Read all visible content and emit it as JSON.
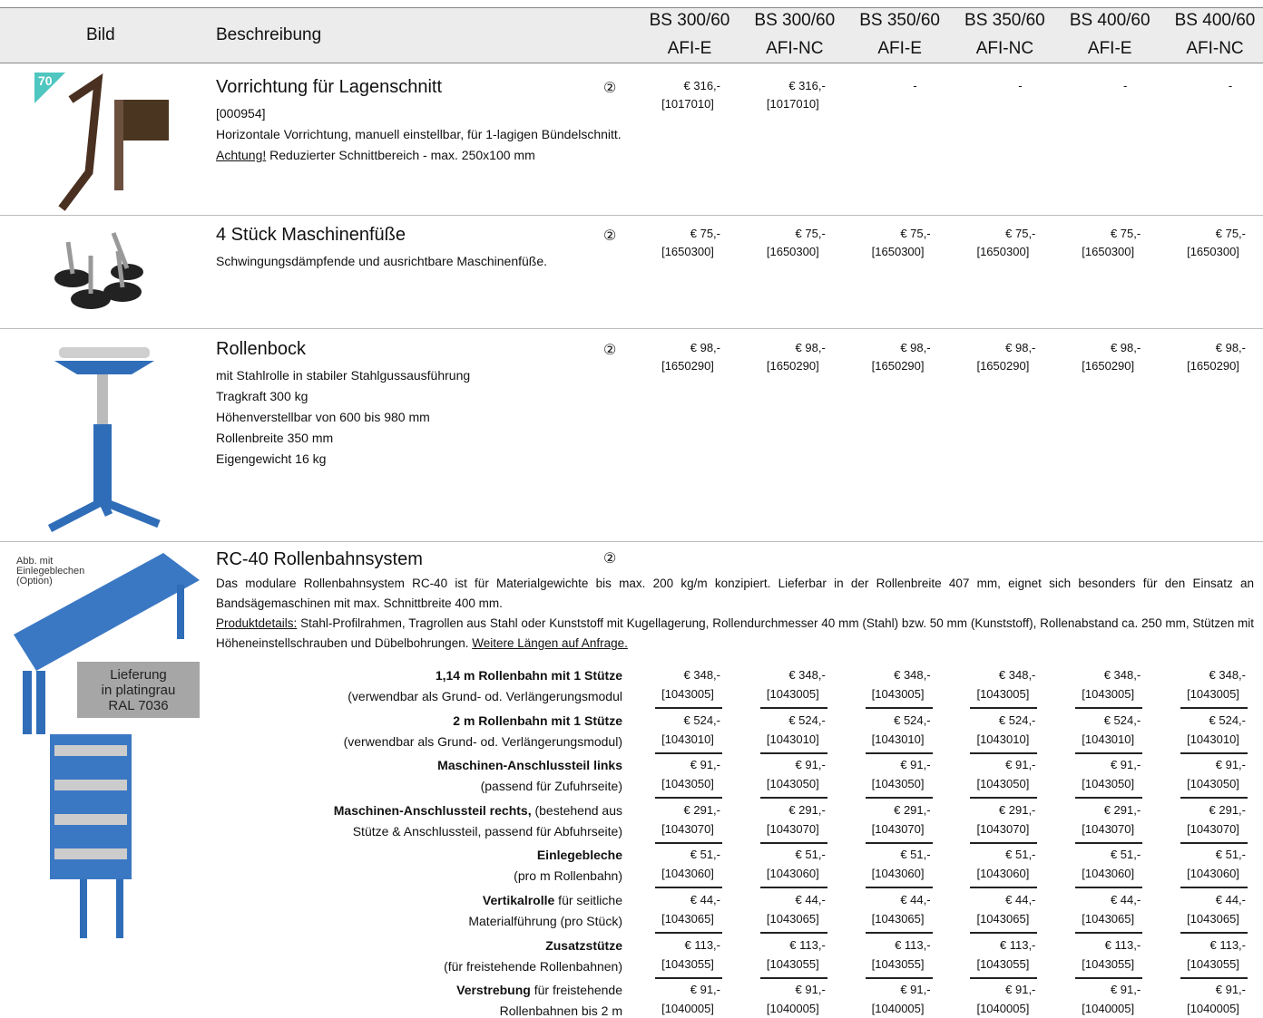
{
  "header": {
    "image": "Bild",
    "description": "Beschreibung",
    "models": [
      [
        "BS 300/60",
        "AFI-E"
      ],
      [
        "BS 300/60",
        "AFI-NC"
      ],
      [
        "BS 350/60",
        "AFI-E"
      ],
      [
        "BS 350/60",
        "AFI-NC"
      ],
      [
        "BS 400/60",
        "AFI-E"
      ],
      [
        "BS 400/60",
        "AFI-NC"
      ]
    ]
  },
  "products": [
    {
      "badge": "70",
      "title": "Vorrichtung für Lagenschnitt",
      "symbol": "②",
      "lines": [
        "[000954]",
        "Horizontale Vorrichtung, manuell einstellbar, für 1-lagigen Bündelschnitt."
      ],
      "warning_label": "Achtung!",
      "warning_text": " Reduzierter Schnittbereich - max. 250x100 mm",
      "prices": [
        [
          "€ 316,-",
          "[1017010]"
        ],
        [
          "€ 316,-",
          "[1017010]"
        ],
        "-",
        "-",
        "-",
        "-"
      ]
    },
    {
      "title": "4 Stück Maschinenfüße",
      "symbol": "②",
      "lines": [
        "Schwingungsdämpfende und ausrichtbare Maschinenfüße."
      ],
      "prices": [
        [
          "€ 75,-",
          "[1650300]"
        ],
        [
          "€ 75,-",
          "[1650300]"
        ],
        [
          "€ 75,-",
          "[1650300]"
        ],
        [
          "€ 75,-",
          "[1650300]"
        ],
        [
          "€ 75,-",
          "[1650300]"
        ],
        [
          "€ 75,-",
          "[1650300]"
        ]
      ]
    },
    {
      "title": "Rollenbock",
      "symbol": "②",
      "lines": [
        "mit Stahlrolle in stabiler Stahlgussausführung",
        "Tragkraft 300 kg",
        "Höhenverstellbar von 600 bis 980 mm",
        "Rollenbreite 350 mm",
        "Eigengewicht 16 kg"
      ],
      "prices": [
        [
          "€ 98,-",
          "[1650290]"
        ],
        [
          "€ 98,-",
          "[1650290]"
        ],
        [
          "€ 98,-",
          "[1650290]"
        ],
        [
          "€ 98,-",
          "[1650290]"
        ],
        [
          "€ 98,-",
          "[1650290]"
        ],
        [
          "€ 98,-",
          "[1650290]"
        ]
      ]
    }
  ],
  "rc40": {
    "image_note": "Abb. mit Einlegeblechen (Option)",
    "color_note": [
      "Lieferung",
      "in platingrau",
      "RAL 7036"
    ],
    "title": "RC-40 Rollenbahnsystem",
    "symbol": "②",
    "intro": "Das modulare Rollenbahnsystem RC-40 ist für Materialgewichte bis max. 200 kg/m konzipiert. Lieferbar in der Rollenbreite 407 mm, eignet sich besonders für den Einsatz an Bandsägemaschinen mit max. Schnittbreite 400 mm.",
    "details_label": "Produktdetails:",
    "details_text": " Stahl-Profilrahmen, Tragrollen aus Stahl oder Kunststoff mit Kugellagerung, Rollendurchmesser 40 mm (Stahl) bzw. 50 mm (Kunststoff), Rollenabstand ca. 250 mm, Stützen mit Höheneinstellschrauben und Dübelbohrungen. ",
    "details_link": "Weitere Längen auf Anfrage.",
    "items": [
      {
        "bold": "1,14 m Rollenbahn mit 1 Stütze",
        "rest": "",
        "line2": "(verwendbar als Grund- od. Verlängerungsmodul",
        "prices": [
          [
            "€ 348,-",
            "[1043005]"
          ],
          [
            "€ 348,-",
            "[1043005]"
          ],
          [
            "€ 348,-",
            "[1043005]"
          ],
          [
            "€ 348,-",
            "[1043005]"
          ],
          [
            "€ 348,-",
            "[1043005]"
          ],
          [
            "€ 348,-",
            "[1043005]"
          ]
        ]
      },
      {
        "bold": "2 m Rollenbahn mit 1 Stütze",
        "rest": "",
        "line2": "(verwendbar als Grund- od. Verlängerungsmodul)",
        "prices": [
          [
            "€ 524,-",
            "[1043010]"
          ],
          [
            "€ 524,-",
            "[1043010]"
          ],
          [
            "€ 524,-",
            "[1043010]"
          ],
          [
            "€ 524,-",
            "[1043010]"
          ],
          [
            "€ 524,-",
            "[1043010]"
          ],
          [
            "€ 524,-",
            "[1043010]"
          ]
        ]
      },
      {
        "bold": "Maschinen-Anschlussteil links",
        "rest": "",
        "line2": "(passend für Zufuhrseite)",
        "prices": [
          [
            "€ 91,-",
            "[1043050]"
          ],
          [
            "€ 91,-",
            "[1043050]"
          ],
          [
            "€ 91,-",
            "[1043050]"
          ],
          [
            "€ 91,-",
            "[1043050]"
          ],
          [
            "€ 91,-",
            "[1043050]"
          ],
          [
            "€ 91,-",
            "[1043050]"
          ]
        ]
      },
      {
        "bold": "Maschinen-Anschlussteil rechts,",
        "rest": " (bestehend aus",
        "line2": "Stütze & Anschlussteil, passend für Abfuhrseite)",
        "prices": [
          [
            "€ 291,-",
            "[1043070]"
          ],
          [
            "€ 291,-",
            "[1043070]"
          ],
          [
            "€ 291,-",
            "[1043070]"
          ],
          [
            "€ 291,-",
            "[1043070]"
          ],
          [
            "€ 291,-",
            "[1043070]"
          ],
          [
            "€ 291,-",
            "[1043070]"
          ]
        ]
      },
      {
        "bold": "Einlegebleche",
        "rest": "",
        "line2": "(pro m Rollenbahn)",
        "prices": [
          [
            "€ 51,-",
            "[1043060]"
          ],
          [
            "€ 51,-",
            "[1043060]"
          ],
          [
            "€ 51,-",
            "[1043060]"
          ],
          [
            "€ 51,-",
            "[1043060]"
          ],
          [
            "€ 51,-",
            "[1043060]"
          ],
          [
            "€ 51,-",
            "[1043060]"
          ]
        ]
      },
      {
        "bold": "Vertikalrolle",
        "rest": " für seitliche",
        "line2": "Materialführung (pro Stück)",
        "prices": [
          [
            "€ 44,-",
            "[1043065]"
          ],
          [
            "€ 44,-",
            "[1043065]"
          ],
          [
            "€ 44,-",
            "[1043065]"
          ],
          [
            "€ 44,-",
            "[1043065]"
          ],
          [
            "€ 44,-",
            "[1043065]"
          ],
          [
            "€ 44,-",
            "[1043065]"
          ]
        ]
      },
      {
        "bold": "Zusatzstütze",
        "rest": "",
        "line2": "(für freistehende Rollenbahnen)",
        "prices": [
          [
            "€ 113,-",
            "[1043055]"
          ],
          [
            "€ 113,-",
            "[1043055]"
          ],
          [
            "€ 113,-",
            "[1043055]"
          ],
          [
            "€ 113,-",
            "[1043055]"
          ],
          [
            "€ 113,-",
            "[1043055]"
          ],
          [
            "€ 113,-",
            "[1043055]"
          ]
        ]
      },
      {
        "bold": "Verstrebung",
        "rest": " für freistehende",
        "line2": "Rollenbahnen bis 2 m",
        "prices": [
          [
            "€ 91,-",
            "[1040005]"
          ],
          [
            "€ 91,-",
            "[1040005]"
          ],
          [
            "€ 91,-",
            "[1040005]"
          ],
          [
            "€ 91,-",
            "[1040005]"
          ],
          [
            "€ 91,-",
            "[1040005]"
          ],
          [
            "€ 91,-",
            "[1040005]"
          ]
        ]
      }
    ]
  }
}
